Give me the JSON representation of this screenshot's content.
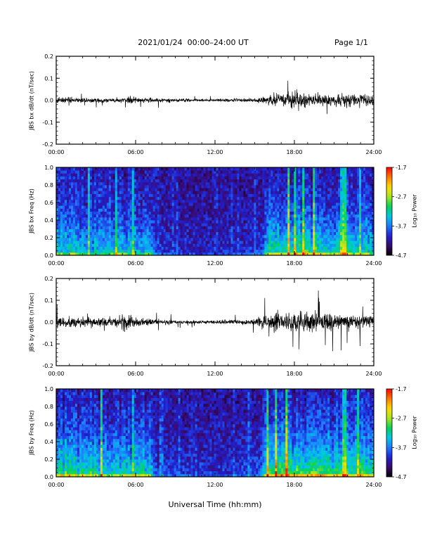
{
  "header": {
    "title": "2021/01/24  00:00–24:00 UT",
    "page": "Page 1/1"
  },
  "xlabel": "Universal Time (hh:mm)",
  "colorbar_label": "Log₁₀ Power",
  "colors": {
    "trace": "#000000",
    "colormap": [
      "#000000",
      "#3a0a6e",
      "#2020d0",
      "#1f78ff",
      "#00c8e6",
      "#00d25a",
      "#aae61e",
      "#ffdc00",
      "#ff7800",
      "#ff0000"
    ]
  },
  "chart_data": [
    {
      "type": "line",
      "title": "",
      "ylabel": "JBS bx dB/dt (nT/sec)",
      "xlim": [
        0,
        24
      ],
      "x_tick_labels": [
        "00:00",
        "06:00",
        "12:00",
        "18:00",
        "24:00"
      ],
      "ylim": [
        -0.2,
        0.2
      ],
      "y_tick_labels": [
        "0.2",
        "0.1",
        "0.0",
        "-0.1",
        "-0.2"
      ],
      "amplitude_envelope": {
        "hours": [
          0,
          2,
          5,
          5.5,
          6,
          7,
          9,
          11,
          13,
          15,
          16,
          17,
          18,
          20,
          22,
          24
        ],
        "values": [
          0.02,
          0.015,
          0.015,
          0.03,
          0.02,
          0.018,
          0.012,
          0.008,
          0.01,
          0.012,
          0.035,
          0.04,
          0.06,
          0.04,
          0.045,
          0.035
        ]
      }
    },
    {
      "type": "heatmap",
      "title": "",
      "ylabel": "JBS bx Freq (Hz)",
      "xlim": [
        0,
        24
      ],
      "x_tick_labels": [
        "00:00",
        "06:00",
        "12:00",
        "18:00",
        "24:00"
      ],
      "ylim": [
        0.0,
        1.0
      ],
      "y_tick_labels": [
        "1.0",
        "0.8",
        "0.6",
        "0.4",
        "0.2",
        "0.0"
      ],
      "colorbar": {
        "range": [
          -4.7,
          -1.7
        ],
        "tick_labels": [
          "-1.7",
          "-2.7",
          "-3.7",
          "-4.7"
        ]
      },
      "activity_by_hour": {
        "hours": [
          0,
          3,
          5,
          6,
          7,
          7.5,
          9,
          12,
          14,
          15.5,
          16,
          18,
          20,
          22,
          24
        ],
        "values": [
          0.6,
          0.55,
          0.6,
          0.55,
          0.6,
          0.2,
          0.15,
          0.1,
          0.15,
          0.2,
          0.75,
          0.8,
          0.75,
          0.7,
          0.6
        ]
      }
    },
    {
      "type": "line",
      "title": "",
      "ylabel": "JBS by dB/dt (nT/sec)",
      "xlim": [
        0,
        24
      ],
      "x_tick_labels": [
        "00:00",
        "06:00",
        "12:00",
        "18:00",
        "24:00"
      ],
      "ylim": [
        -0.2,
        0.2
      ],
      "y_tick_labels": [
        "0.2",
        "0.1",
        "0.0",
        "-0.1",
        "-0.2"
      ],
      "amplitude_envelope": {
        "hours": [
          0,
          2,
          4,
          5.5,
          6,
          7.5,
          9,
          11,
          13,
          15,
          16,
          17,
          19,
          21,
          24
        ],
        "values": [
          0.04,
          0.035,
          0.03,
          0.06,
          0.03,
          0.025,
          0.012,
          0.01,
          0.015,
          0.02,
          0.07,
          0.06,
          0.075,
          0.06,
          0.04
        ]
      }
    },
    {
      "type": "heatmap",
      "title": "",
      "ylabel": "JBS by Freq (Hz)",
      "xlim": [
        0,
        24
      ],
      "x_tick_labels": [
        "00:00",
        "06:00",
        "12:00",
        "18:00",
        "24:00"
      ],
      "ylim": [
        0.0,
        1.0
      ],
      "y_tick_labels": [
        "1.0",
        "0.8",
        "0.6",
        "0.4",
        "0.2",
        "0.0"
      ],
      "colorbar": {
        "range": [
          -4.7,
          -1.7
        ],
        "tick_labels": [
          "-1.7",
          "-2.7",
          "-3.7",
          "-4.7"
        ]
      },
      "activity_by_hour": {
        "hours": [
          0,
          3,
          5,
          6,
          7,
          7.5,
          9,
          12,
          14,
          15.5,
          16,
          18,
          20,
          22,
          24
        ],
        "values": [
          0.75,
          0.7,
          0.7,
          0.65,
          0.7,
          0.25,
          0.2,
          0.15,
          0.2,
          0.3,
          0.85,
          0.9,
          0.85,
          0.8,
          0.7
        ]
      }
    }
  ]
}
